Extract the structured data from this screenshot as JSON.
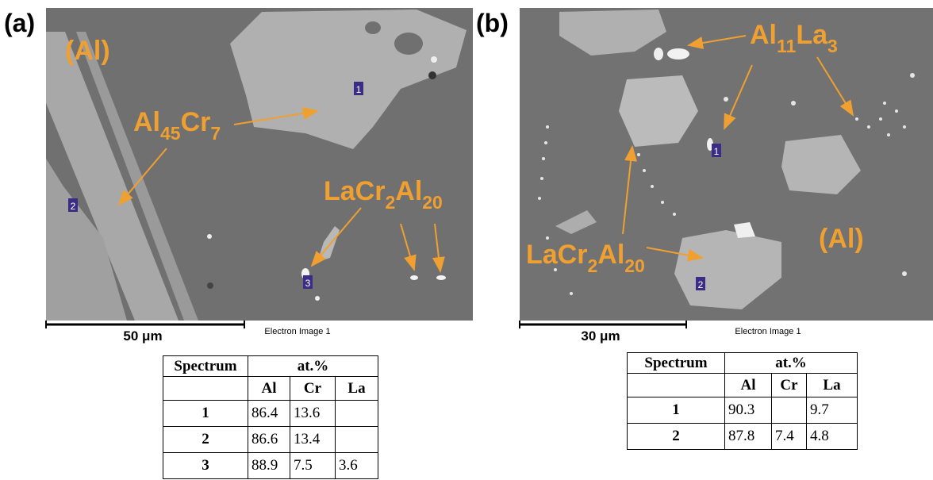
{
  "panels": [
    {
      "label": "(a)",
      "annotations": [
        [
          "(Al)"
        ],
        [
          "Al",
          "45",
          "Cr",
          "7"
        ],
        [
          "LaCr",
          "2",
          "Al",
          "20"
        ]
      ],
      "markers": [
        "1",
        "2",
        "3"
      ],
      "scale_bar": "50 μm",
      "caption": "Electron Image 1",
      "table": {
        "header": [
          "Spectrum",
          "at.%"
        ],
        "subheader": [
          "Al",
          "Cr",
          "La"
        ],
        "rows": [
          [
            "1",
            86.4,
            13.6,
            null
          ],
          [
            "2",
            86.6,
            13.4,
            null
          ],
          [
            "3",
            88.9,
            7.5,
            3.6
          ]
        ]
      }
    },
    {
      "label": "(b)",
      "annotations": [
        [
          "Al",
          "11",
          "La",
          "3"
        ],
        [
          "LaCr",
          "2",
          "Al",
          "20"
        ],
        [
          "(Al)"
        ]
      ],
      "markers": [
        "1",
        "2"
      ],
      "scale_bar": "30 μm",
      "caption": "Electron Image 1",
      "table": {
        "header": [
          "Spectrum",
          "at.%"
        ],
        "subheader": [
          "Al",
          "Cr",
          "La"
        ],
        "rows": [
          [
            "1",
            90.3,
            null,
            9.7
          ],
          [
            "2",
            87.8,
            7.4,
            4.8
          ]
        ]
      }
    }
  ]
}
